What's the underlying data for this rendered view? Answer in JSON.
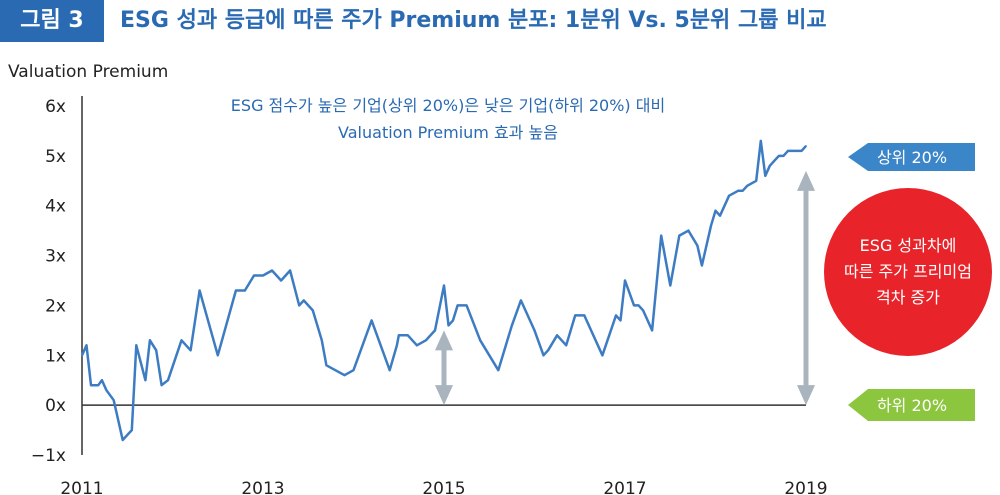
{
  "header": {
    "badge": "그림 3",
    "title": "ESG 성과 등급에 따른 주가 Premium 분포: 1분위 Vs. 5분위 그룹 비교"
  },
  "colors": {
    "accent": "#2a6ab3",
    "line": "#3d7cc3",
    "arrow": "#a9b4be",
    "top_tag": "#3b86c9",
    "bottom_tag": "#8cc63f",
    "circle": "#e8232a"
  },
  "chart_data": {
    "type": "line",
    "title": "ESG 성과 등급에 따른 주가 Premium 분포: 1분위 Vs. 5분위 그룹 비교",
    "ylabel": "Valuation Premium",
    "xlabel": "",
    "ylim": [
      -1,
      6
    ],
    "xlim": [
      2011,
      2019
    ],
    "yticks": [
      {
        "value": 6,
        "label": "6x"
      },
      {
        "value": 5,
        "label": "5x"
      },
      {
        "value": 4,
        "label": "4x"
      },
      {
        "value": 3,
        "label": "3x"
      },
      {
        "value": 2,
        "label": "2x"
      },
      {
        "value": 1,
        "label": "1x"
      },
      {
        "value": 0,
        "label": "0x"
      },
      {
        "value": -1,
        "label": "−1x"
      }
    ],
    "xticks": [
      {
        "value": 2011,
        "label": "2011"
      },
      {
        "value": 2013,
        "label": "2013"
      },
      {
        "value": 2015,
        "label": "2015"
      },
      {
        "value": 2017,
        "label": "2017"
      },
      {
        "value": 2019,
        "label": "2019"
      }
    ],
    "annotation": {
      "line1": "ESG 점수가 높은 기업(상위 20%)은 낮은 기업(하위 20%) 대비",
      "line2": "Valuation Premium 효과 높음"
    },
    "top_tag": "상위 20%",
    "bottom_tag": "하위 20%",
    "circle_note": [
      "ESG 성과차에",
      "따른 주가 프리미엄",
      "격차 증가"
    ],
    "series": [
      {
        "name": "Valuation Premium",
        "x": [
          2011.0,
          2011.05,
          2011.1,
          2011.18,
          2011.22,
          2011.27,
          2011.35,
          2011.45,
          2011.55,
          2011.6,
          2011.7,
          2011.75,
          2011.82,
          2011.88,
          2011.95,
          2012.1,
          2012.2,
          2012.3,
          2012.5,
          2012.7,
          2012.8,
          2012.9,
          2013.0,
          2013.1,
          2013.2,
          2013.3,
          2013.4,
          2013.45,
          2013.55,
          2013.65,
          2013.7,
          2013.9,
          2014.0,
          2014.2,
          2014.4,
          2014.48,
          2014.5,
          2014.55,
          2014.6,
          2014.7,
          2014.8,
          2014.9,
          2015.0,
          2015.05,
          2015.1,
          2015.15,
          2015.25,
          2015.4,
          2015.5,
          2015.6,
          2015.75,
          2015.85,
          2016.0,
          2016.1,
          2016.15,
          2016.25,
          2016.35,
          2016.45,
          2016.55,
          2016.75,
          2016.9,
          2016.95,
          2017.0,
          2017.1,
          2017.15,
          2017.2,
          2017.3,
          2017.4,
          2017.5,
          2017.6,
          2017.7,
          2017.8,
          2017.85,
          2017.95,
          2018.0,
          2018.05,
          2018.15,
          2018.25,
          2018.3,
          2018.35,
          2018.45,
          2018.5,
          2018.55,
          2018.6,
          2018.65,
          2018.7,
          2018.75,
          2018.8,
          2018.9,
          2018.95,
          2019.0
        ],
        "y": [
          1.0,
          1.2,
          0.4,
          0.4,
          0.5,
          0.3,
          0.1,
          -0.7,
          -0.5,
          1.2,
          0.5,
          1.3,
          1.1,
          0.4,
          0.5,
          1.3,
          1.1,
          2.3,
          1.0,
          2.3,
          2.3,
          2.6,
          2.6,
          2.7,
          2.5,
          2.7,
          2.0,
          2.1,
          1.9,
          1.3,
          0.8,
          0.6,
          0.7,
          1.7,
          0.7,
          1.2,
          1.4,
          1.4,
          1.4,
          1.2,
          1.3,
          1.5,
          2.4,
          1.6,
          1.7,
          2.0,
          2.0,
          1.3,
          1.0,
          0.7,
          1.6,
          2.1,
          1.5,
          1.0,
          1.1,
          1.4,
          1.2,
          1.8,
          1.8,
          1.0,
          1.8,
          1.7,
          2.5,
          2.0,
          2.0,
          1.9,
          1.5,
          3.4,
          2.4,
          3.4,
          3.5,
          3.2,
          2.8,
          3.6,
          3.9,
          3.8,
          4.2,
          4.3,
          4.3,
          4.4,
          4.5,
          5.3,
          4.6,
          4.8,
          4.9,
          5.0,
          5.0,
          5.1,
          5.1,
          5.1,
          5.2
        ]
      }
    ]
  }
}
